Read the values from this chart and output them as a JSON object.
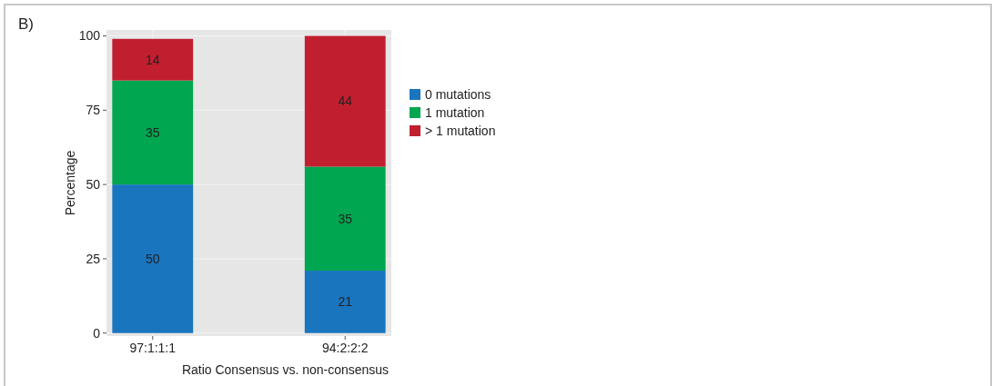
{
  "chart_data": {
    "type": "bar",
    "stacked": true,
    "xlabel": "Ratio Consensus vs. non-consensus",
    "ylabel": "Percentage",
    "categories": [
      "97:1:1:1",
      "94:2:2:2"
    ],
    "series": [
      {
        "name": "0 mutations",
        "color": "#1a75bf",
        "values": [
          50,
          21
        ]
      },
      {
        "name": "1 mutation",
        "color": "#00a650",
        "values": [
          35,
          35
        ]
      },
      {
        "name": "> 1 mutation",
        "color": "#c11f2f",
        "values": [
          14,
          44
        ]
      }
    ],
    "ylim": [
      -1,
      102
    ],
    "yticks": [
      0,
      25,
      50,
      75,
      100
    ],
    "grid": true,
    "legend": "right",
    "data_labels": true,
    "annotations": [
      "B)"
    ]
  }
}
